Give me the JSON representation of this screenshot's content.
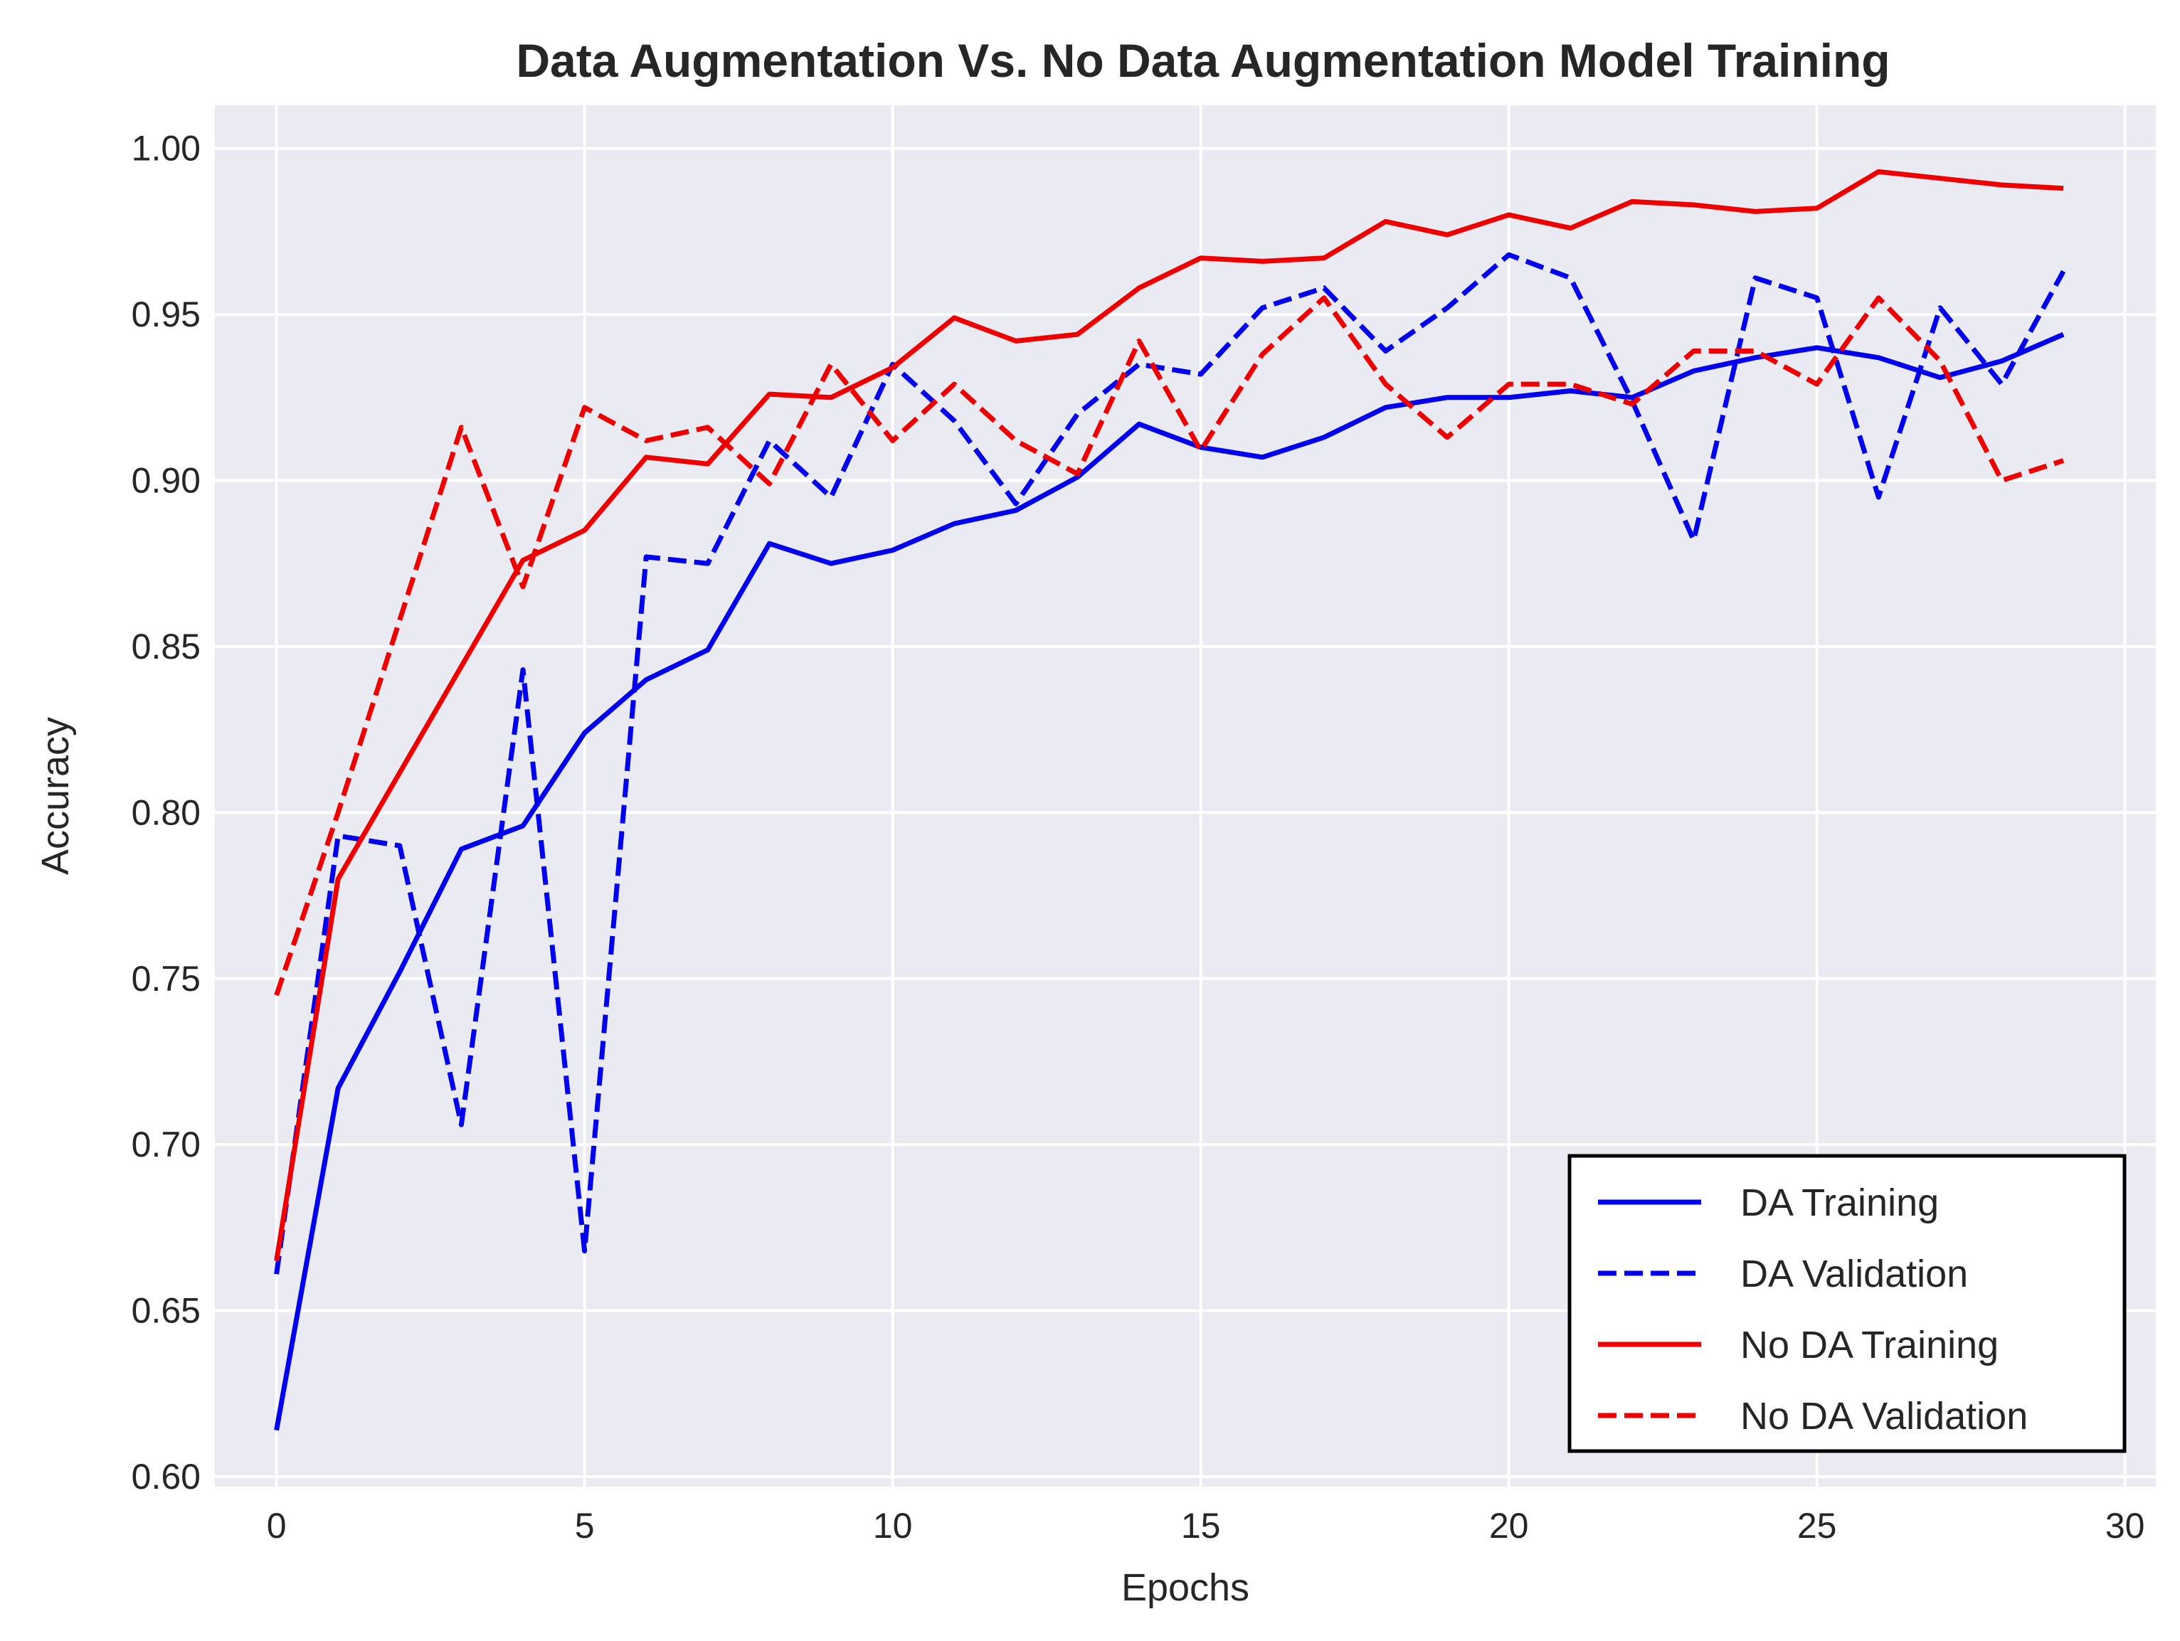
{
  "chart_data": {
    "type": "line",
    "title": "Data Augmentation Vs. No Data Augmentation Model Training",
    "xlabel": "Epochs",
    "ylabel": "Accuracy",
    "xlim": [
      -1,
      30.5
    ],
    "ylim": [
      0.597,
      1.013
    ],
    "xticks": [
      0,
      5,
      10,
      15,
      20,
      25,
      30
    ],
    "yticks": [
      0.6,
      0.65,
      0.7,
      0.75,
      0.8,
      0.85,
      0.9,
      0.95,
      1.0
    ],
    "xtick_labels": [
      "0",
      "5",
      "10",
      "15",
      "20",
      "25",
      "30"
    ],
    "ytick_labels": [
      "0.60",
      "0.65",
      "0.70",
      "0.75",
      "0.80",
      "0.85",
      "0.90",
      "0.95",
      "1.00"
    ],
    "grid": true,
    "legend_position": "bottom-right",
    "x": [
      0,
      1,
      2,
      3,
      4,
      5,
      6,
      7,
      8,
      9,
      10,
      11,
      12,
      13,
      14,
      15,
      16,
      17,
      18,
      19,
      20,
      21,
      22,
      23,
      24,
      25,
      26,
      27,
      28,
      29
    ],
    "series": [
      {
        "name": "DA Training",
        "color": "#0000ee",
        "style": "solid",
        "values": [
          0.614,
          0.717,
          0.752,
          0.789,
          0.796,
          0.824,
          0.84,
          0.849,
          0.881,
          0.875,
          0.879,
          0.887,
          0.891,
          0.901,
          0.917,
          0.91,
          0.907,
          0.913,
          0.922,
          0.925,
          0.925,
          0.927,
          0.925,
          0.933,
          0.937,
          0.94,
          0.937,
          0.931,
          0.936,
          0.944
        ]
      },
      {
        "name": "DA Validation",
        "color": "#0000ee",
        "style": "dashed",
        "values": [
          0.661,
          0.793,
          0.79,
          0.706,
          0.843,
          0.668,
          0.877,
          0.875,
          0.912,
          0.895,
          0.935,
          0.918,
          0.893,
          0.92,
          0.935,
          0.932,
          0.952,
          0.958,
          0.939,
          0.952,
          0.968,
          0.961,
          0.924,
          0.882,
          0.961,
          0.955,
          0.895,
          0.952,
          0.929,
          0.963
        ]
      },
      {
        "name": "No DA Training",
        "color": "#ee0000",
        "style": "solid",
        "values": [
          0.665,
          0.78,
          0.812,
          0.844,
          0.876,
          0.885,
          0.907,
          0.905,
          0.926,
          0.925,
          0.934,
          0.949,
          0.942,
          0.944,
          0.958,
          0.967,
          0.966,
          0.967,
          0.978,
          0.974,
          0.98,
          0.976,
          0.984,
          0.983,
          0.981,
          0.982,
          0.993,
          0.991,
          0.989,
          0.988
        ]
      },
      {
        "name": "No DA Validation",
        "color": "#ee0000",
        "style": "dashed",
        "values": [
          0.745,
          0.8,
          0.858,
          0.916,
          0.868,
          0.922,
          0.912,
          0.916,
          0.899,
          0.935,
          0.912,
          0.929,
          0.912,
          0.902,
          0.942,
          0.909,
          0.938,
          0.955,
          0.929,
          0.913,
          0.929,
          0.929,
          0.923,
          0.939,
          0.939,
          0.929,
          0.955,
          0.936,
          0.9,
          0.906
        ]
      }
    ]
  }
}
